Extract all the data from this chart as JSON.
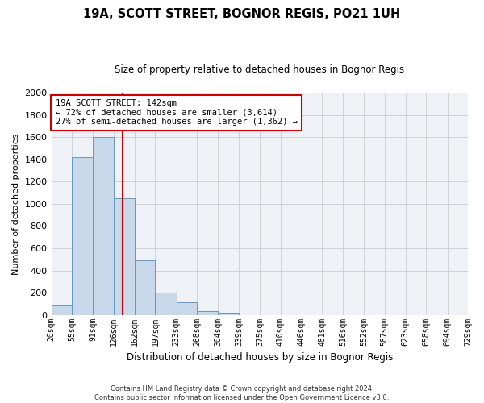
{
  "title": "19A, SCOTT STREET, BOGNOR REGIS, PO21 1UH",
  "subtitle": "Size of property relative to detached houses in Bognor Regis",
  "xlabel": "Distribution of detached houses by size in Bognor Regis",
  "ylabel": "Number of detached properties",
  "bin_edges": [
    20,
    55,
    91,
    126,
    162,
    197,
    233,
    268,
    304,
    339,
    375,
    410,
    446,
    481,
    516,
    552,
    587,
    623,
    658,
    694,
    729
  ],
  "bar_heights": [
    85,
    1420,
    1600,
    1050,
    490,
    200,
    110,
    35,
    20,
    0,
    0,
    0,
    0,
    0,
    0,
    0,
    0,
    0,
    0,
    0
  ],
  "bar_color": "#c8d8ea",
  "bar_edge_color": "#6699bb",
  "ylim": [
    0,
    2000
  ],
  "yticks": [
    0,
    200,
    400,
    600,
    800,
    1000,
    1200,
    1400,
    1600,
    1800,
    2000
  ],
  "grid_color": "#cccccc",
  "bg_color": "#eef2f7",
  "vline_x": 142,
  "vline_color": "#cc0000",
  "annotation_box_title": "19A SCOTT STREET: 142sqm",
  "annotation_line1": "← 72% of detached houses are smaller (3,614)",
  "annotation_line2": "27% of semi-detached houses are larger (1,362) →",
  "annotation_box_color": "#cc0000",
  "footer_line1": "Contains HM Land Registry data © Crown copyright and database right 2024.",
  "footer_line2": "Contains public sector information licensed under the Open Government Licence v3.0.",
  "tick_labels": [
    "20sqm",
    "55sqm",
    "91sqm",
    "126sqm",
    "162sqm",
    "197sqm",
    "233sqm",
    "268sqm",
    "304sqm",
    "339sqm",
    "375sqm",
    "410sqm",
    "446sqm",
    "481sqm",
    "516sqm",
    "552sqm",
    "587sqm",
    "623sqm",
    "658sqm",
    "694sqm",
    "729sqm"
  ]
}
